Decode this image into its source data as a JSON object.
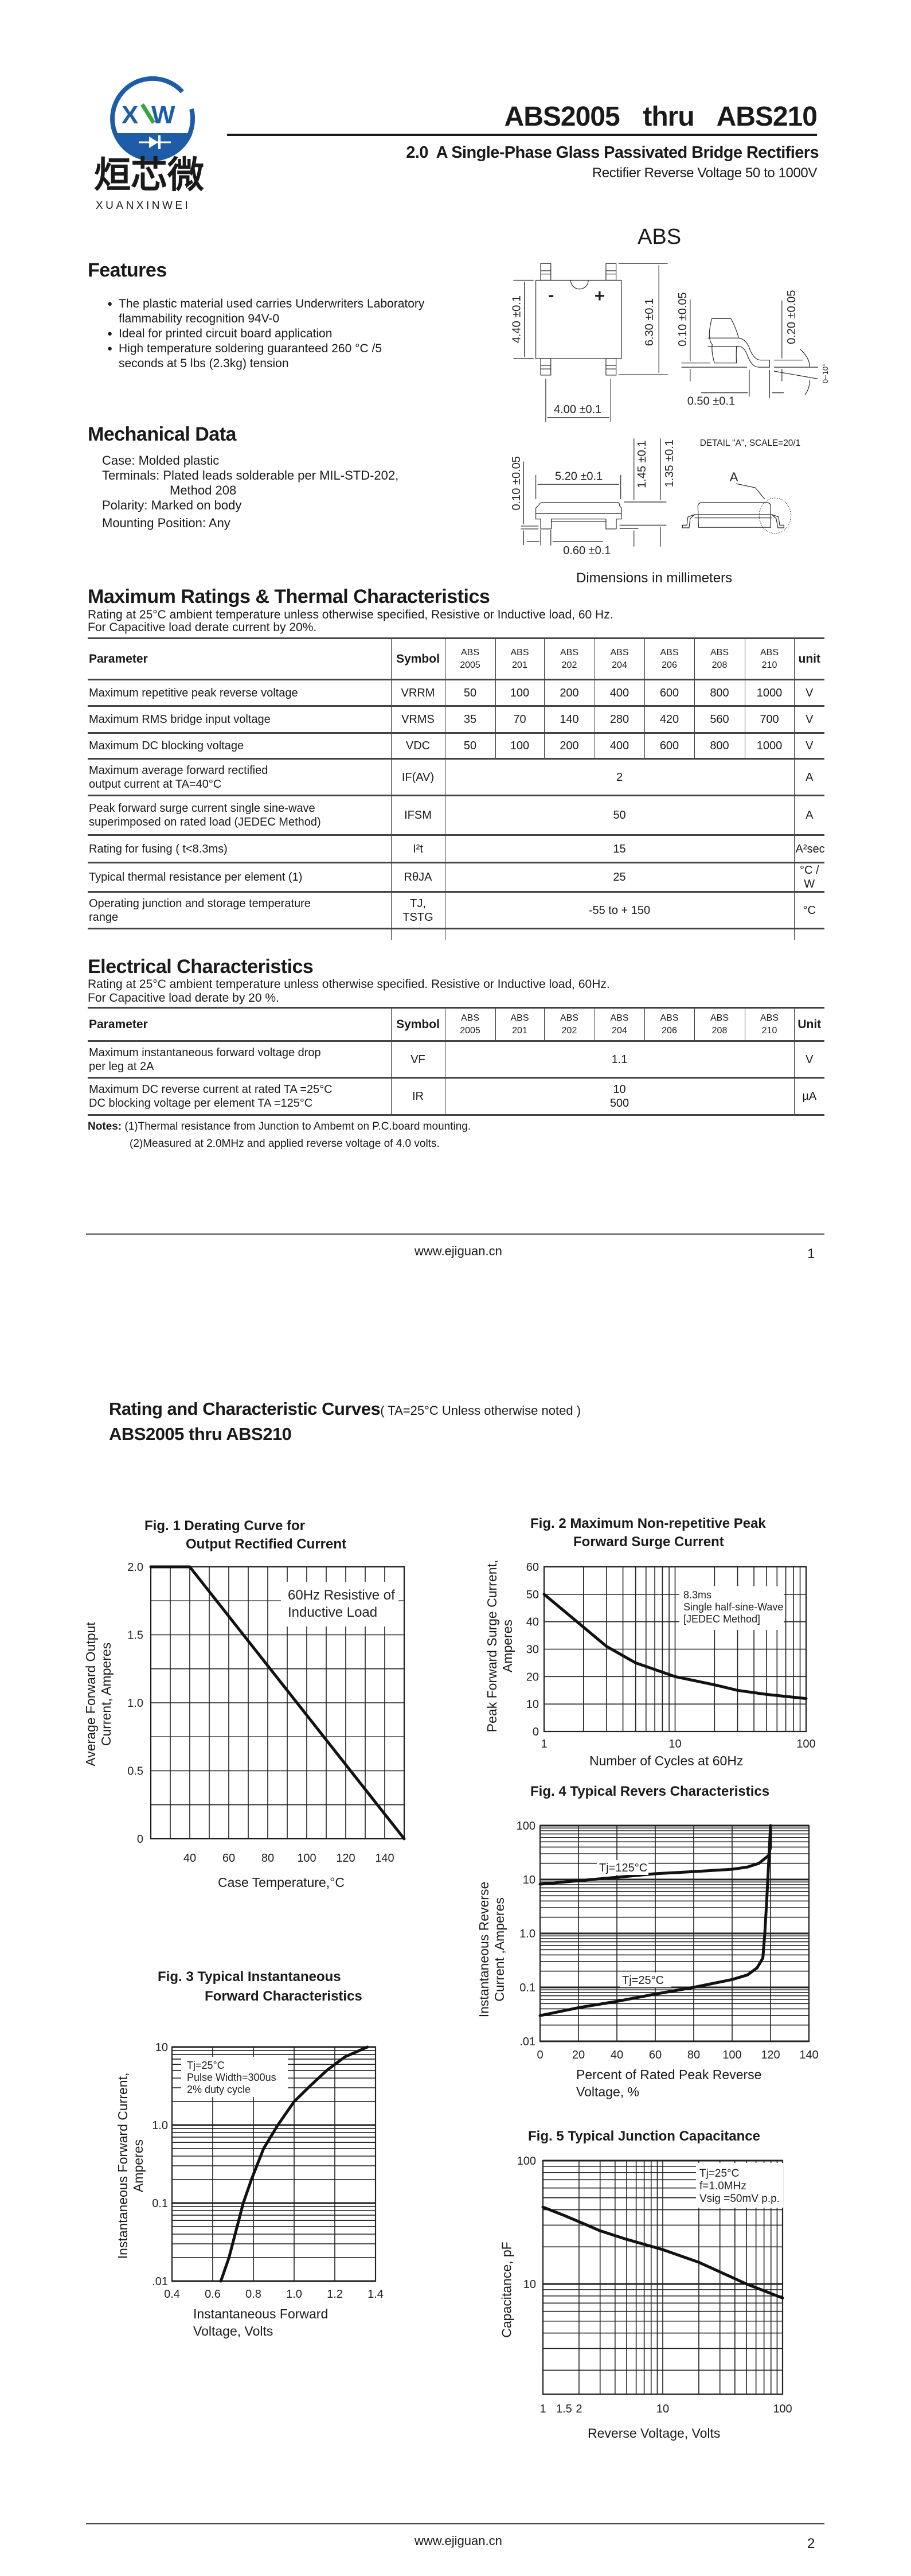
{
  "logo": {
    "chinese": "烜芯微",
    "latin": "XUANXINWEI",
    "mark": "XW",
    "colors": {
      "blue": "#1f5ca8",
      "green": "#3aa53a"
    }
  },
  "header": {
    "title": "ABS2005  thru  ABS210",
    "subtitle": "2.0  A Single-Phase Glass Passivated Bridge Rectifiers",
    "subsubtitle": "Rectifier Reverse Voltage 50 to 1000V"
  },
  "package": {
    "name": "ABS",
    "dims": {
      "d440": "4.40 ±0.1",
      "d630": "6.30 ±0.1",
      "d400": "4.00 ±0.1",
      "d010a": "0.10 ±0.05",
      "d020": "0.20 ±0.05",
      "d050": "0.50 ±0.1",
      "angle": "0~10°",
      "d520": "5.20 ±0.1",
      "d145": "1.45 ±0.1",
      "d135": "1.35 ±0.1",
      "d010b": "0.10 ±0.05",
      "d060": "0.60 ±0.1",
      "detail": "DETAIL \"A\", SCALE=20/1",
      "detail_marker": "A",
      "minus": "-",
      "plus": "+"
    },
    "caption": "Dimensions in millimeters"
  },
  "features": {
    "heading": "Features",
    "items": [
      "The plastic material used carries Underwriters Laboratory\nflammability recognition 94V-0",
      "Ideal for printed circuit board application",
      "High temperature soldering guaranteed 260 °C /5\nseconds at 5 lbs (2.3kg) tension"
    ]
  },
  "mechanical": {
    "heading": "Mechanical Data",
    "items": [
      "Case: Molded plastic",
      "Terminals: Plated leads solderable per MIL-STD-202,",
      "Method 208",
      "Polarity: Marked on body",
      "Mounting Position: Any"
    ]
  },
  "ratings": {
    "heading": "Maximum Ratings & Thermal Characteristics",
    "note1": "Rating at 25°C ambient temperature unless otherwise specified, Resistive or Inductive load, 60 Hz.",
    "note2": "For Capacitive load derate current by 20%.",
    "header": {
      "parameter": "Parameter",
      "symbol": "Symbol",
      "unit": "unit"
    },
    "columns": [
      "ABS\n2005",
      "ABS\n201",
      "ABS\n202",
      "ABS\n204",
      "ABS\n206",
      "ABS\n208",
      "ABS\n210"
    ],
    "rows": [
      {
        "param": "Maximum repetitive peak reverse voltage",
        "symbol": "VRRM",
        "values": [
          "50",
          "100",
          "200",
          "400",
          "600",
          "800",
          "1000"
        ],
        "unit": "V"
      },
      {
        "param": "Maximum RMS bridge input voltage",
        "symbol": "VRMS",
        "values": [
          "35",
          "70",
          "140",
          "280",
          "420",
          "560",
          "700"
        ],
        "unit": "V"
      },
      {
        "param": "Maximum DC blocking voltage",
        "symbol": "VDC",
        "values": [
          "50",
          "100",
          "200",
          "400",
          "600",
          "800",
          "1000"
        ],
        "unit": "V"
      },
      {
        "param": "Maximum average forward rectified\noutput current at TA=40°C",
        "symbol": "IF(AV)",
        "value": "2",
        "unit": "A"
      },
      {
        "param": "Peak forward surge current single sine-wave\nsuperimposed on rated load (JEDEC Method)",
        "symbol": "IFSM",
        "value": "50",
        "unit": "A"
      },
      {
        "param": "Rating for fusing ( t<8.3ms)",
        "symbol": "I²t",
        "value": "15",
        "unit": "A²sec"
      },
      {
        "param": "Typical  thermal resistance per element (1)",
        "symbol": "RθJA",
        "value": "25",
        "unit": "°C / W"
      },
      {
        "param": "Operating junction and storage temperature\nrange",
        "symbol": "TJ,\nTSTG",
        "value": "-55 to + 150",
        "unit": "°C"
      }
    ]
  },
  "electrical": {
    "heading": "Electrical Characteristics",
    "note1": "Rating at 25°C ambient temperature unless otherwise specified. Resistive or Inductive load, 60Hz.",
    "note2": "For Capacitive load derate by 20 %.",
    "header": {
      "parameter": "Parameter",
      "symbol": "Symbol",
      "unit": "Unit"
    },
    "columns": [
      "ABS\n2005",
      "ABS\n201",
      "ABS\n202",
      "ABS\n204",
      "ABS\n206",
      "ABS\n208",
      "ABS\n210"
    ],
    "rows": [
      {
        "param": "Maximum instantaneous forward voltage drop\nper leg at 2A",
        "symbol": "VF",
        "value": "1.1",
        "unit": "V"
      },
      {
        "param": "Maximum DC reverse current at rated  TA =25°C\nDC blocking voltage per element        TA =125°C",
        "symbol": "IR",
        "value": "10\n500",
        "unit": "µA"
      }
    ],
    "notes_label": "Notes:",
    "notes": [
      "(1)Thermal resistance from Junction to Ambemt on P.C.board mounting.",
      "(2)Measured at 2.0MHz and applied reverse voltage of 4.0 volts."
    ]
  },
  "footer1": {
    "url": "www.ejiguan.cn",
    "page": "1"
  },
  "page2": {
    "heading": "Rating and Characteristic Curves",
    "condition": "( TA=25°C Unless otherwise noted )",
    "subheading": "ABS2005 thru ABS210"
  },
  "footer2": {
    "url": "www.ejiguan.cn",
    "page": "2"
  },
  "chart_data": [
    {
      "type": "line",
      "title": [
        "Fig. 1 Derating Curve for",
        "Output Rectified Current"
      ],
      "xlabel": "Case Temperature,°C",
      "ylabel": "Average Forward Output\nCurrent, Amperes",
      "x_scale": "linear",
      "y_scale": "linear",
      "xlim": [
        20,
        150
      ],
      "ylim": [
        0,
        2
      ],
      "x_ticks": [
        "40",
        "60",
        "80",
        "100",
        "120",
        "140"
      ],
      "y_ticks": [
        "0",
        "0.5",
        "1.0",
        "1.5",
        "2.0"
      ],
      "grid": true,
      "annotation": [
        "60Hz Resistive of",
        "Inductive Load"
      ],
      "series": [
        {
          "x": [
            20,
            40,
            150
          ],
          "y": [
            2.0,
            2.0,
            0
          ]
        }
      ]
    },
    {
      "type": "line",
      "title": [
        "Fig. 2 Maximum Non-repetitive Peak",
        "Forward Surge Current"
      ],
      "xlabel": "Number of Cycles at 60Hz",
      "ylabel": "Peak Forward Surge Current,\nAmperes",
      "x_scale": "log",
      "y_scale": "linear",
      "xlim": [
        1,
        100
      ],
      "ylim": [
        0,
        60
      ],
      "x_ticks": [
        "1",
        "10",
        "100"
      ],
      "y_ticks": [
        "0",
        "10",
        "20",
        "30",
        "40",
        "50",
        "60"
      ],
      "grid": true,
      "annotation": [
        "8.3ms",
        "Single half-sine-Wave",
        "[JEDEC Method]"
      ],
      "series": [
        {
          "x": [
            1,
            2,
            3,
            5,
            10,
            20,
            30,
            50,
            100
          ],
          "y": [
            50,
            38,
            31,
            25,
            20,
            17,
            15,
            13.5,
            12
          ]
        }
      ]
    },
    {
      "type": "line",
      "title": [
        "Fig. 3 Typical Instantaneous",
        "Forward Characteristics"
      ],
      "xlabel": "Instantaneous Forward\nVoltage, Volts",
      "ylabel": "Instantaneous Forward Current,\nAmperes",
      "x_scale": "linear",
      "y_scale": "log",
      "xlim": [
        0.4,
        1.4
      ],
      "ylim": [
        0.01,
        10
      ],
      "x_ticks": [
        "0.4",
        "0.6",
        "0.8",
        "1.0",
        "1.2",
        "1.4"
      ],
      "y_ticks": [
        ".01",
        "0.1",
        "1.0",
        "10"
      ],
      "grid": true,
      "annotation": [
        "Tj=25°C",
        "Pulse Width=300us",
        "2% duty cycle"
      ],
      "series": [
        {
          "x": [
            0.64,
            0.68,
            0.72,
            0.75,
            0.79,
            0.85,
            0.92,
            1.0,
            1.08,
            1.16,
            1.25,
            1.36
          ],
          "y": [
            0.01,
            0.02,
            0.05,
            0.1,
            0.2,
            0.5,
            1.0,
            2.0,
            3.2,
            5.0,
            7.5,
            10
          ]
        }
      ]
    },
    {
      "type": "line",
      "title": [
        "Fig. 4 Typical Revers Characteristics"
      ],
      "xlabel": "Percent of Rated Peak Reverse\nVoltage, %",
      "ylabel": "Instantaneous Reverse\nCurrent ,Amperes",
      "x_scale": "linear",
      "y_scale": "log",
      "xlim": [
        0,
        140
      ],
      "ylim": [
        0.01,
        100
      ],
      "x_ticks": [
        "0",
        "20",
        "40",
        "60",
        "80",
        "100",
        "120",
        "140"
      ],
      "y_ticks": [
        ".01",
        "0.1",
        "1.0",
        "10",
        "100"
      ],
      "grid": true,
      "series": [
        {
          "name": "Tj=125°C",
          "x": [
            0,
            20,
            40,
            60,
            80,
            100,
            108,
            114,
            119,
            120,
            120
          ],
          "y": [
            8.2,
            9.5,
            11,
            12.8,
            14,
            15.5,
            17,
            20,
            28,
            40,
            100
          ]
        },
        {
          "name": "Tj=25°C",
          "x": [
            0,
            20,
            40,
            60,
            80,
            100,
            108,
            113,
            116,
            117,
            118,
            119,
            120
          ],
          "y": [
            0.03,
            0.042,
            0.055,
            0.075,
            0.1,
            0.14,
            0.17,
            0.23,
            0.35,
            1.0,
            4,
            20,
            100
          ]
        }
      ]
    },
    {
      "type": "line",
      "title": [
        "Fig. 5 Typical Junction Capacitance"
      ],
      "xlabel": "Reverse Voltage, Volts",
      "ylabel": "Capacitance, pF",
      "x_scale": "log",
      "y_scale": "log",
      "xlim": [
        1,
        100
      ],
      "ylim": [
        1.28,
        100
      ],
      "x_ticks": [
        "1",
        "1.5",
        "2",
        "10",
        "100"
      ],
      "y_ticks": [
        "10",
        "100"
      ],
      "grid": true,
      "annotation": [
        "Tj=25°C",
        "f=1.0MHz",
        "Vsig =50mV p.p."
      ],
      "series": [
        {
          "x": [
            1,
            1.5,
            2,
            3,
            5,
            10,
            20,
            50,
            100
          ],
          "y": [
            42,
            36,
            32,
            27,
            23,
            19,
            15,
            10,
            7.7
          ]
        }
      ]
    }
  ]
}
